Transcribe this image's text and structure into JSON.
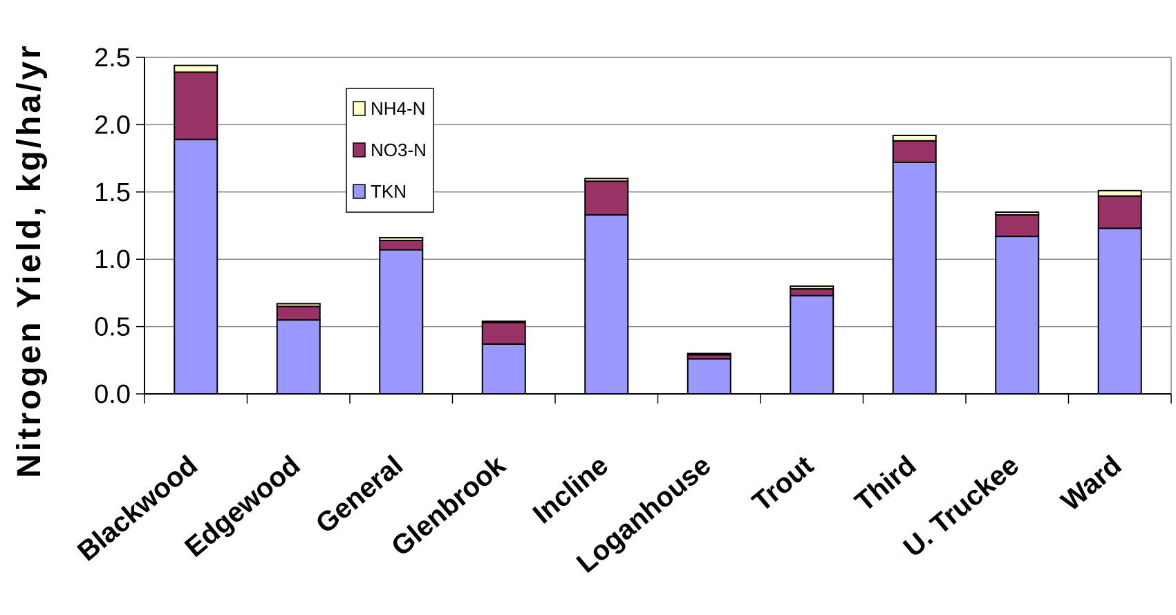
{
  "chart_data": {
    "type": "bar",
    "stacked": true,
    "ylabel": "Nitrogen Yield, kg/ha/yr",
    "xlabel": "",
    "ylim": [
      0,
      2.5
    ],
    "yticks": [
      "0.0",
      "0.5",
      "1.0",
      "1.5",
      "2.0",
      "2.5"
    ],
    "grid": true,
    "legend_position": "top-left inside",
    "categories": [
      "Blackwood",
      "Edgewood",
      "General",
      "Glenbrook",
      "Incline",
      "Loganhouse",
      "Trout",
      "Third",
      "U. Truckee",
      "Ward"
    ],
    "series": [
      {
        "name": "TKN",
        "color": "#9999ff",
        "values": [
          1.89,
          0.55,
          1.07,
          0.37,
          1.33,
          0.26,
          0.73,
          1.72,
          1.17,
          1.23
        ]
      },
      {
        "name": "NO3-N",
        "color": "#993366",
        "values": [
          0.5,
          0.1,
          0.07,
          0.16,
          0.25,
          0.03,
          0.05,
          0.16,
          0.16,
          0.24
        ]
      },
      {
        "name": "NH4-N",
        "color": "#ffffcc",
        "values": [
          0.05,
          0.02,
          0.02,
          0.01,
          0.02,
          0.01,
          0.02,
          0.04,
          0.02,
          0.04
        ]
      }
    ]
  }
}
